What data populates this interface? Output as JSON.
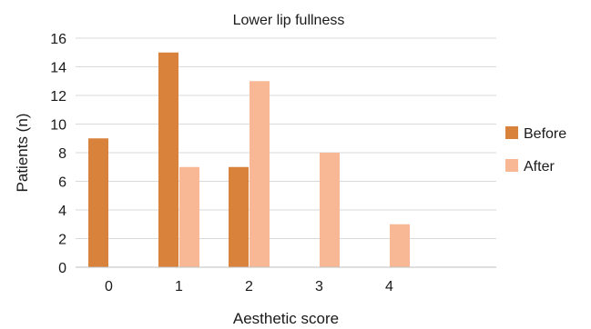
{
  "chart_data": {
    "type": "bar",
    "title": "Lower lip fullness",
    "xlabel": "Aesthetic score",
    "ylabel": "Patients (n)",
    "categories": [
      "0",
      "1",
      "2",
      "3",
      "4"
    ],
    "series": [
      {
        "name": "Before",
        "values": [
          9,
          15,
          7,
          null,
          null
        ],
        "color": "#D9823B"
      },
      {
        "name": "After",
        "values": [
          null,
          7,
          13,
          8,
          3
        ],
        "color": "#F8B895"
      }
    ],
    "ylim": [
      0,
      16
    ],
    "yticks": [
      0,
      2,
      4,
      6,
      8,
      10,
      12,
      14,
      16
    ],
    "grid": true,
    "legend_position": "right"
  }
}
